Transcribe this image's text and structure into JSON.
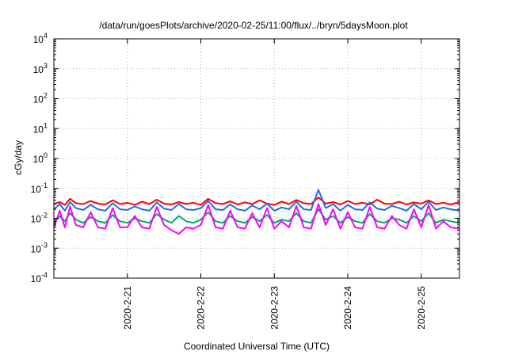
{
  "chart_data": {
    "type": "line",
    "title": "/data/run/goesPlots/archive/2020-02-25/11:00/flux/../bryn/5daysMoon.plot",
    "xlabel": "Coordinated Universal Time (UTC)",
    "ylabel": "cGy/day",
    "yscale": "log",
    "ylim": [
      0.0001,
      10000
    ],
    "xlim": [
      0,
      5.52
    ],
    "grid": true,
    "y_ticks": [
      {
        "value": 0.0001,
        "base": "10",
        "exp": "-4"
      },
      {
        "value": 0.001,
        "base": "10",
        "exp": "-3"
      },
      {
        "value": 0.01,
        "base": "10",
        "exp": "-2"
      },
      {
        "value": 0.1,
        "base": "10",
        "exp": "-1"
      },
      {
        "value": 1,
        "base": "10",
        "exp": "0"
      },
      {
        "value": 10,
        "base": "10",
        "exp": "1"
      },
      {
        "value": 100,
        "base": "10",
        "exp": "2"
      },
      {
        "value": 1000,
        "base": "10",
        "exp": "3"
      },
      {
        "value": 10000,
        "base": "10",
        "exp": "4"
      }
    ],
    "x_ticks": [
      {
        "value": 1,
        "label": "2020-2-21"
      },
      {
        "value": 2,
        "label": "2020-2-22"
      },
      {
        "value": 3,
        "label": "2020-2-23"
      },
      {
        "value": 4,
        "label": "2020-2-24"
      },
      {
        "value": 5,
        "label": "2020-2-25"
      }
    ],
    "series": [
      {
        "color": "#ff0000",
        "x": [
          0,
          0.08,
          0.15,
          0.22,
          0.3,
          0.4,
          0.5,
          0.6,
          0.7,
          0.8,
          0.9,
          1.0,
          1.1,
          1.2,
          1.3,
          1.4,
          1.5,
          1.6,
          1.7,
          1.8,
          1.9,
          2.0,
          2.1,
          2.2,
          2.3,
          2.4,
          2.5,
          2.6,
          2.7,
          2.8,
          2.9,
          3.0,
          3.1,
          3.2,
          3.3,
          3.4,
          3.5,
          3.6,
          3.7,
          3.8,
          3.9,
          4.0,
          4.1,
          4.2,
          4.3,
          4.4,
          4.5,
          4.6,
          4.7,
          4.8,
          4.9,
          5.0,
          5.1,
          5.2,
          5.3,
          5.4,
          5.52
        ],
        "values": [
          0.03,
          0.035,
          0.028,
          0.045,
          0.032,
          0.03,
          0.038,
          0.031,
          0.029,
          0.04,
          0.03,
          0.033,
          0.028,
          0.036,
          0.03,
          0.042,
          0.031,
          0.029,
          0.035,
          0.03,
          0.033,
          0.028,
          0.045,
          0.032,
          0.03,
          0.037,
          0.029,
          0.034,
          0.03,
          0.04,
          0.031,
          0.028,
          0.036,
          0.03,
          0.041,
          0.032,
          0.03,
          0.05,
          0.031,
          0.035,
          0.029,
          0.038,
          0.03,
          0.033,
          0.029,
          0.042,
          0.031,
          0.03,
          0.036,
          0.029,
          0.034,
          0.031,
          0.04,
          0.03,
          0.033,
          0.029,
          0.035
        ]
      },
      {
        "color": "#00aa66",
        "x": [
          0,
          0.08,
          0.15,
          0.22,
          0.3,
          0.4,
          0.5,
          0.6,
          0.7,
          0.8,
          0.9,
          1.0,
          1.1,
          1.2,
          1.3,
          1.4,
          1.5,
          1.6,
          1.7,
          1.8,
          1.9,
          2.0,
          2.1,
          2.2,
          2.3,
          2.4,
          2.5,
          2.6,
          2.7,
          2.8,
          2.9,
          3.0,
          3.1,
          3.2,
          3.3,
          3.4,
          3.5,
          3.6,
          3.7,
          3.8,
          3.9,
          4.0,
          4.1,
          4.2,
          4.3,
          4.4,
          4.5,
          4.6,
          4.7,
          4.8,
          4.9,
          5.0,
          5.1,
          5.2,
          5.3,
          5.4,
          5.52
        ],
        "values": [
          0.007,
          0.012,
          0.008,
          0.015,
          0.009,
          0.007,
          0.011,
          0.008,
          0.007,
          0.013,
          0.008,
          0.007,
          0.01,
          0.008,
          0.007,
          0.014,
          0.009,
          0.007,
          0.012,
          0.008,
          0.007,
          0.009,
          0.016,
          0.008,
          0.007,
          0.012,
          0.008,
          0.007,
          0.011,
          0.008,
          0.013,
          0.007,
          0.009,
          0.008,
          0.015,
          0.008,
          0.007,
          0.02,
          0.009,
          0.012,
          0.007,
          0.011,
          0.008,
          0.007,
          0.014,
          0.008,
          0.007,
          0.01,
          0.009,
          0.007,
          0.012,
          0.008,
          0.015,
          0.007,
          0.009,
          0.008,
          0.007
        ]
      },
      {
        "color": "#1f6fe0",
        "x": [
          0,
          0.08,
          0.15,
          0.22,
          0.3,
          0.4,
          0.5,
          0.6,
          0.7,
          0.8,
          0.9,
          1.0,
          1.1,
          1.2,
          1.3,
          1.4,
          1.5,
          1.6,
          1.7,
          1.8,
          1.9,
          2.0,
          2.1,
          2.2,
          2.3,
          2.4,
          2.5,
          2.6,
          2.7,
          2.8,
          2.9,
          3.0,
          3.1,
          3.2,
          3.3,
          3.4,
          3.5,
          3.6,
          3.7,
          3.8,
          3.9,
          4.0,
          4.1,
          4.2,
          4.3,
          4.4,
          4.5,
          4.6,
          4.7,
          4.8,
          4.9,
          5.0,
          5.1,
          5.2,
          5.3,
          5.4,
          5.52
        ],
        "values": [
          0.02,
          0.03,
          0.018,
          0.035,
          0.022,
          0.019,
          0.028,
          0.02,
          0.018,
          0.032,
          0.02,
          0.019,
          0.025,
          0.02,
          0.018,
          0.034,
          0.021,
          0.019,
          0.03,
          0.02,
          0.019,
          0.022,
          0.038,
          0.02,
          0.019,
          0.029,
          0.02,
          0.018,
          0.027,
          0.02,
          0.031,
          0.018,
          0.023,
          0.02,
          0.036,
          0.02,
          0.019,
          0.09,
          0.022,
          0.03,
          0.018,
          0.028,
          0.02,
          0.019,
          0.034,
          0.021,
          0.019,
          0.026,
          0.022,
          0.018,
          0.03,
          0.02,
          0.036,
          0.019,
          0.023,
          0.02,
          0.018
        ]
      },
      {
        "color": "#ff00ff",
        "x": [
          0,
          0.08,
          0.15,
          0.22,
          0.3,
          0.4,
          0.5,
          0.6,
          0.7,
          0.8,
          0.9,
          1.0,
          1.1,
          1.2,
          1.3,
          1.4,
          1.5,
          1.6,
          1.7,
          1.8,
          1.9,
          2.0,
          2.1,
          2.2,
          2.3,
          2.4,
          2.5,
          2.6,
          2.7,
          2.8,
          2.9,
          3.0,
          3.1,
          3.2,
          3.3,
          3.4,
          3.5,
          3.6,
          3.7,
          3.8,
          3.9,
          4.0,
          4.1,
          4.2,
          4.3,
          4.4,
          4.5,
          4.6,
          4.7,
          4.8,
          4.9,
          5.0,
          5.1,
          5.2,
          5.3,
          5.4,
          5.52
        ],
        "values": [
          0.005,
          0.018,
          0.005,
          0.025,
          0.006,
          0.005,
          0.016,
          0.005,
          0.0045,
          0.022,
          0.005,
          0.005,
          0.012,
          0.005,
          0.0045,
          0.024,
          0.006,
          0.004,
          0.003,
          0.005,
          0.0045,
          0.006,
          0.028,
          0.005,
          0.0045,
          0.018,
          0.005,
          0.0045,
          0.015,
          0.005,
          0.022,
          0.0045,
          0.008,
          0.005,
          0.026,
          0.005,
          0.0045,
          0.03,
          0.006,
          0.02,
          0.0045,
          0.016,
          0.005,
          0.0045,
          0.024,
          0.005,
          0.0045,
          0.012,
          0.006,
          0.0045,
          0.02,
          0.005,
          0.028,
          0.0045,
          0.008,
          0.005,
          0.0045
        ]
      }
    ]
  }
}
